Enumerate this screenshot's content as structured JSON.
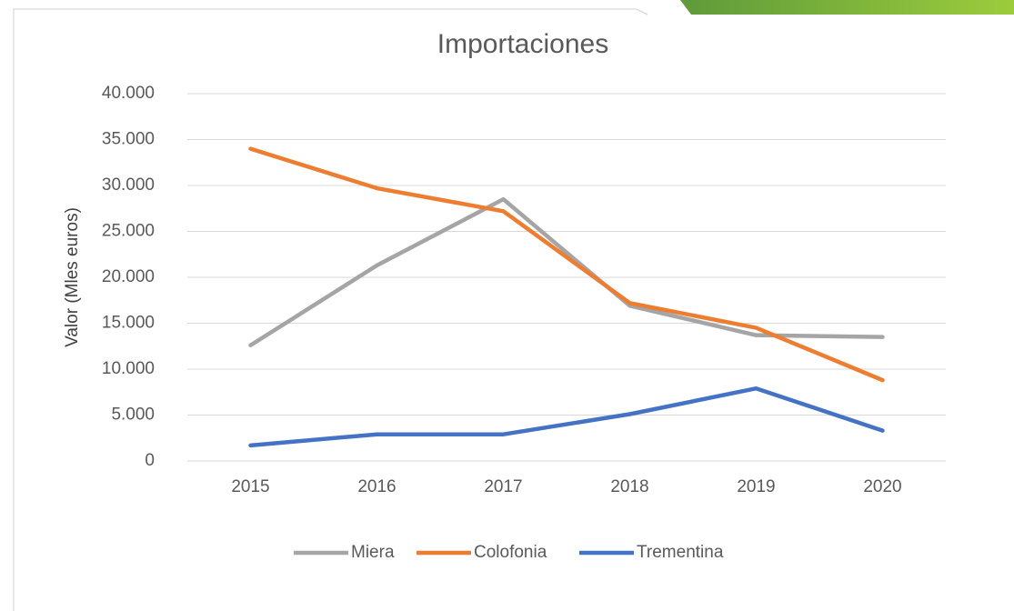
{
  "chart_data": {
    "type": "line",
    "title": "Importaciones",
    "ylabel": "Valor (Mles euros)",
    "categories": [
      "2015",
      "2016",
      "2017",
      "2018",
      "2019",
      "2020"
    ],
    "series": [
      {
        "name": "Miera",
        "color": "#a5a5a5",
        "values": [
          12600,
          21300,
          28500,
          16900,
          13700,
          13500
        ]
      },
      {
        "name": "Colofonia",
        "color": "#ed7d31",
        "values": [
          34000,
          29700,
          27200,
          17200,
          14500,
          8800
        ]
      },
      {
        "name": "Trementina",
        "color": "#4472c4",
        "values": [
          1700,
          2900,
          2900,
          5100,
          7900,
          3300
        ]
      }
    ],
    "ylim": [
      0,
      40000
    ],
    "yticks": [
      0,
      {
        "value": 5000,
        "label": "5.000"
      },
      {
        "value": 10000,
        "label": "10.000"
      },
      {
        "value": 15000,
        "label": "15.000"
      },
      {
        "value": 20000,
        "label": "20.000"
      },
      {
        "value": 25000,
        "label": "25.000"
      },
      {
        "value": 30000,
        "label": "30.000"
      },
      {
        "value": 35000,
        "label": "35.000"
      },
      {
        "value": 40000,
        "label": "40.000"
      }
    ],
    "grid": true,
    "legend": "bottom"
  }
}
